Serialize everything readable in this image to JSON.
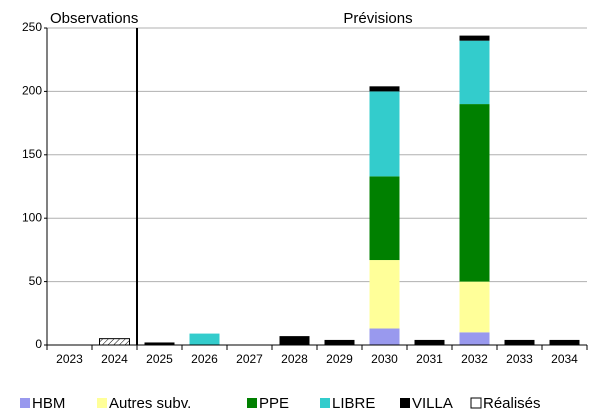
{
  "chart_data": {
    "type": "bar",
    "stacked": true,
    "categories": [
      "2023",
      "2024",
      "2025",
      "2026",
      "2027",
      "2028",
      "2029",
      "2030",
      "2031",
      "2032",
      "2033",
      "2034"
    ],
    "series": [
      {
        "name": "HBM",
        "color": "#9999ee",
        "values": [
          0,
          0,
          0,
          0,
          0,
          0,
          0,
          13,
          0,
          10,
          0,
          0
        ]
      },
      {
        "name": "Autres subv.",
        "color": "#ffff99",
        "values": [
          0,
          0,
          0,
          0,
          0,
          0,
          0,
          54,
          0,
          40,
          0,
          0
        ]
      },
      {
        "name": "PPE",
        "color": "#008000",
        "values": [
          0,
          0,
          0,
          0,
          0,
          0,
          0,
          66,
          0,
          140,
          0,
          0
        ]
      },
      {
        "name": "LIBRE",
        "color": "#33cccc",
        "values": [
          0,
          0,
          0,
          9,
          0,
          0,
          0,
          67,
          0,
          50,
          0,
          0
        ]
      },
      {
        "name": "VILLA",
        "color": "#000000",
        "values": [
          0,
          0,
          2,
          0,
          0,
          7,
          4,
          4,
          4,
          4,
          4,
          4
        ]
      },
      {
        "name": "Réalisés",
        "color": "#ffffff",
        "hatch": true,
        "values": [
          0,
          5,
          0,
          0,
          0,
          0,
          0,
          0,
          0,
          0,
          0,
          0
        ]
      }
    ],
    "annotations": [
      {
        "text": "Observations",
        "color": "#000000"
      },
      {
        "text": "Prévisions",
        "color": "#0000ff"
      }
    ],
    "ylim": [
      0,
      250
    ],
    "yticks": [
      0,
      50,
      100,
      150,
      200,
      250
    ],
    "grid": true
  }
}
